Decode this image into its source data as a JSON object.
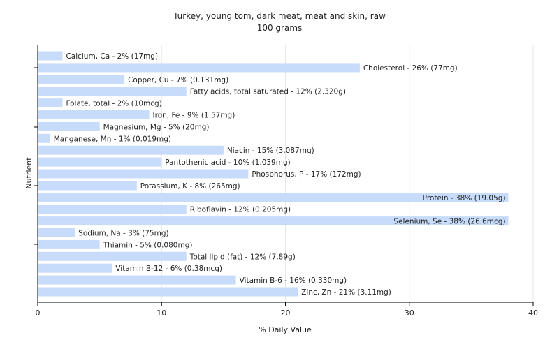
{
  "chart_data": {
    "type": "bar",
    "orientation": "horizontal",
    "title": "Turkey, young tom, dark meat, meat and skin, raw",
    "subtitle": "100 grams",
    "xlabel": "% Daily Value",
    "ylabel": "Nutrient",
    "xlim": [
      0,
      40
    ],
    "xticks": [
      0,
      10,
      20,
      30,
      40
    ],
    "grid": true,
    "bar_color": "#c6dcfa",
    "categories": [
      "Calcium, Ca",
      "Cholesterol",
      "Copper, Cu",
      "Fatty acids, total saturated",
      "Folate, total",
      "Iron, Fe",
      "Magnesium, Mg",
      "Manganese, Mn",
      "Niacin",
      "Pantothenic acid",
      "Phosphorus, P",
      "Potassium, K",
      "Protein",
      "Riboflavin",
      "Selenium, Se",
      "Sodium, Na",
      "Thiamin",
      "Total lipid (fat)",
      "Vitamin B-12",
      "Vitamin B-6",
      "Zinc, Zn"
    ],
    "values": [
      2,
      26,
      7,
      12,
      2,
      9,
      5,
      1,
      15,
      10,
      17,
      8,
      38,
      12,
      38,
      3,
      5,
      12,
      6,
      16,
      21
    ],
    "labels": [
      "Calcium, Ca - 2% (17mg)",
      "Cholesterol - 26% (77mg)",
      "Copper, Cu - 7% (0.131mg)",
      "Fatty acids, total saturated - 12% (2.320g)",
      "Folate, total - 2% (10mcg)",
      "Iron, Fe - 9% (1.57mg)",
      "Magnesium, Mg - 5% (20mg)",
      "Manganese, Mn - 1% (0.019mg)",
      "Niacin - 15% (3.087mg)",
      "Pantothenic acid - 10% (1.039mg)",
      "Phosphorus, P - 17% (172mg)",
      "Potassium, K - 8% (265mg)",
      "Protein - 38% (19.05g)",
      "Riboflavin - 12% (0.205mg)",
      "Selenium, Se - 38% (26.6mcg)",
      "Sodium, Na - 3% (75mg)",
      "Thiamin - 5% (0.080mg)",
      "Total lipid (fat) - 12% (7.89g)",
      "Vitamin B-12 - 6% (0.38mcg)",
      "Vitamin B-6 - 16% (0.330mg)",
      "Zinc, Zn - 21% (3.11mg)"
    ]
  }
}
